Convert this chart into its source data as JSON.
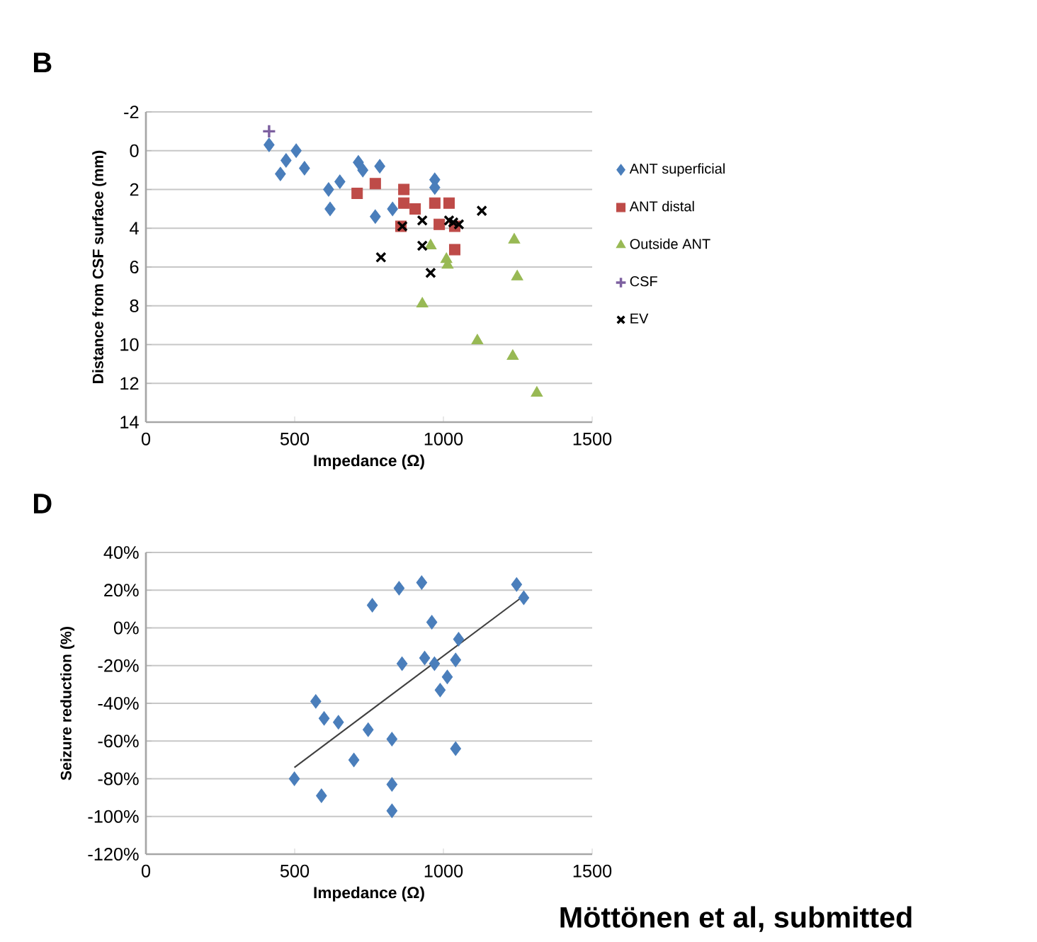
{
  "chart_data": [
    {
      "type": "scatter",
      "title": "B",
      "xlabel": "Impedance (Ω)",
      "ylabel": "Distance from CSF surface (mm)",
      "xlim": [
        0,
        1500
      ],
      "xticks": [
        0,
        500,
        1000,
        1500
      ],
      "ylim": [
        14,
        -2
      ],
      "yticks": [
        -2,
        0,
        2,
        4,
        6,
        8,
        10,
        12,
        14
      ],
      "grid": "y",
      "legend": "right",
      "series": [
        {
          "name": "ANT superficial",
          "color": "#4a7ebb",
          "marker": "diamond",
          "x": [
            414,
            505,
            471,
            452,
            533,
            614,
            652,
            619,
            714,
            729,
            786,
            771,
            829,
            914,
            971,
            971
          ],
          "values": [
            -0.3,
            0.0,
            0.5,
            1.2,
            0.9,
            2.0,
            1.6,
            3.0,
            0.6,
            1.0,
            0.8,
            3.4,
            3.0,
            null,
            1.5,
            1.9
          ]
        },
        {
          "name": "ANT distal",
          "color": "#be4b48",
          "marker": "square",
          "x": [
            710,
            771,
            867,
            867,
            905,
            857,
            971,
            1019,
            986,
            1038,
            1038
          ],
          "values": [
            2.2,
            1.7,
            2.0,
            2.7,
            3.0,
            3.9,
            2.7,
            2.7,
            3.8,
            3.9,
            5.1
          ]
        },
        {
          "name": "Outside ANT",
          "color": "#98b954",
          "marker": "triangle",
          "x": [
            929,
            1010,
            1014,
            957,
            1238,
            1248,
            1114,
            1233,
            1314
          ],
          "values": [
            7.9,
            5.6,
            5.9,
            4.9,
            4.6,
            6.5,
            9.8,
            10.6,
            12.5
          ]
        },
        {
          "name": "CSF",
          "color": "#7d60a0",
          "marker": "plus",
          "x": [
            414
          ],
          "values": [
            -1.0
          ]
        },
        {
          "name": "EV",
          "color": "#000000",
          "marker": "cross",
          "x": [
            790,
            862,
            929,
            929,
            957,
            1019,
            1033,
            1052,
            1129
          ],
          "values": [
            5.5,
            3.9,
            3.6,
            4.9,
            6.3,
            3.6,
            3.7,
            3.8,
            3.1
          ]
        }
      ]
    },
    {
      "type": "scatter",
      "title": "D",
      "xlabel": "Impedance (Ω)",
      "ylabel": "Seizure reduction (%)",
      "xlim": [
        0,
        1500
      ],
      "xticks": [
        0,
        500,
        1000,
        1500
      ],
      "ylim": [
        -120,
        40
      ],
      "yticks": [
        {
          "value": -120,
          "label": "-120%"
        },
        {
          "value": -100,
          "label": "-100%"
        },
        {
          "value": -80,
          "label": "-80%"
        },
        {
          "value": -60,
          "label": "-60%"
        },
        {
          "value": -40,
          "label": "-40%"
        },
        {
          "value": -20,
          "label": "-20%"
        },
        {
          "value": 0,
          "label": "0%"
        },
        {
          "value": 20,
          "label": "20%"
        },
        {
          "value": 40,
          "label": "40%"
        }
      ],
      "grid": "y",
      "marker": "diamond",
      "annotations": [
        "Möttönen et al, submitted"
      ],
      "series": [
        {
          "color": "#4a7ebb",
          "x": [
            499,
            590,
            571,
            599,
            647,
            699,
            747,
            761,
            827,
            827,
            827,
            851,
            861,
            927,
            937,
            961,
            970,
            989,
            1013,
            1041,
            1041,
            1051,
            1246,
            1270
          ],
          "values": [
            -80,
            -89,
            -39,
            -48,
            -50,
            -70,
            -54,
            12,
            -59,
            -83,
            -97,
            21,
            -19,
            24,
            -16,
            3,
            -19,
            -33,
            -26,
            -17,
            -64,
            -6,
            23,
            16
          ]
        },
        {
          "type": "line",
          "color": "#404040",
          "marker": "none",
          "x": [
            499,
            1270
          ],
          "values": [
            -74,
            17
          ]
        }
      ]
    }
  ]
}
